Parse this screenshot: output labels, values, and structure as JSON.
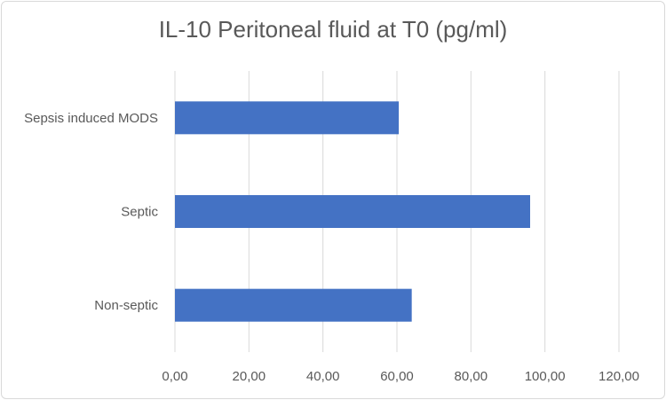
{
  "chart_data": {
    "type": "bar",
    "orientation": "horizontal",
    "title": "IL-10 Peritoneal fluid at T0 (pg/ml)",
    "categories": [
      "Sepsis induced MODS",
      "Septic",
      "Non-septic"
    ],
    "values": [
      60.5,
      96.0,
      64.0
    ],
    "xlim": [
      0,
      120
    ],
    "x_ticks": [
      0,
      20,
      40,
      60,
      80,
      100,
      120
    ],
    "x_tick_labels": [
      "0,00",
      "20,00",
      "40,00",
      "60,00",
      "80,00",
      "100,00",
      "120,00"
    ],
    "xlabel": "",
    "ylabel": "",
    "grid": "vertical",
    "legend": "none",
    "bar_color": "#4472c4",
    "grid_color": "#d9d9d9",
    "text_color": "#595959"
  }
}
